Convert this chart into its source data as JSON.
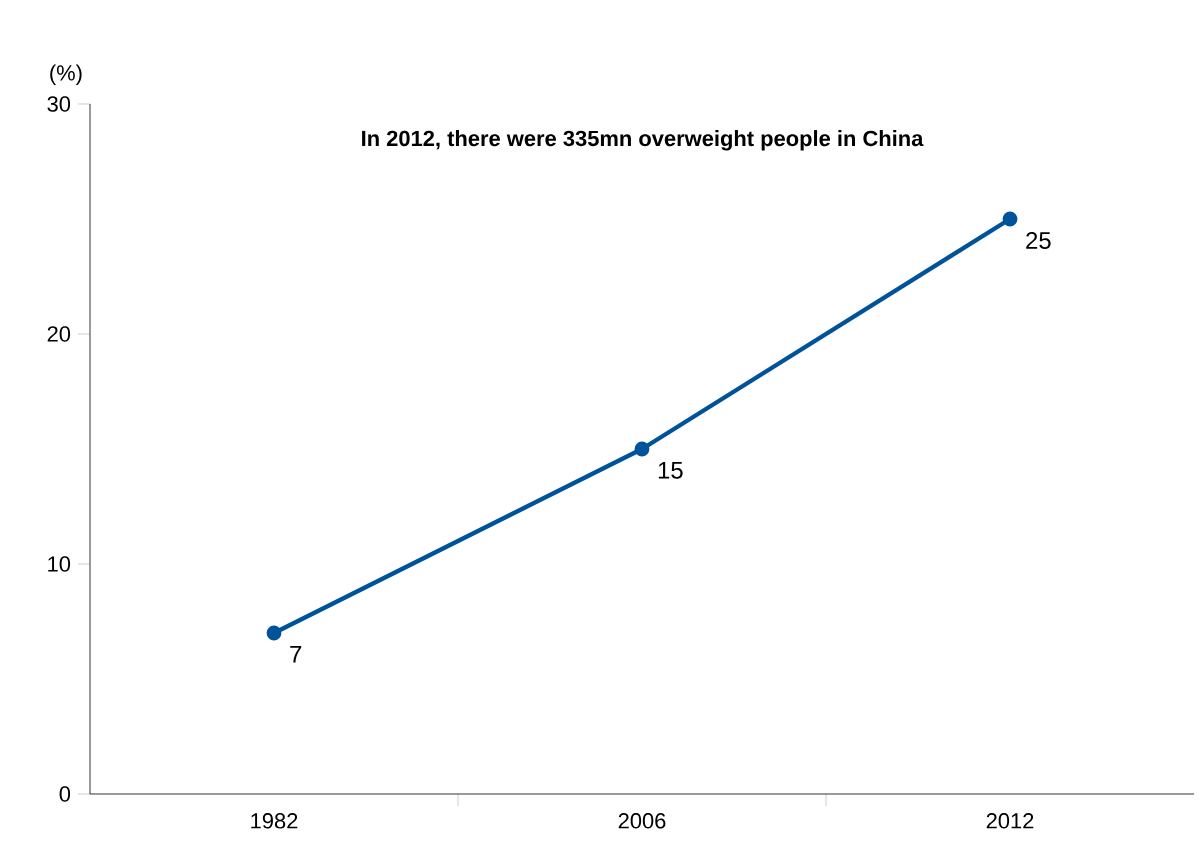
{
  "chart_data": {
    "type": "line",
    "title": "In 2012, there were 335mn overweight people in China",
    "ylabel": "(%)",
    "categories": [
      "1982",
      "2006",
      "2012"
    ],
    "series": [
      {
        "color": "#00539b",
        "values": [
          7,
          15,
          25
        ]
      }
    ],
    "ylim": [
      0,
      30
    ],
    "yticks": [
      0,
      10,
      20,
      30
    ],
    "marker": "circle",
    "line_style": "solid",
    "data_labels": true
  }
}
